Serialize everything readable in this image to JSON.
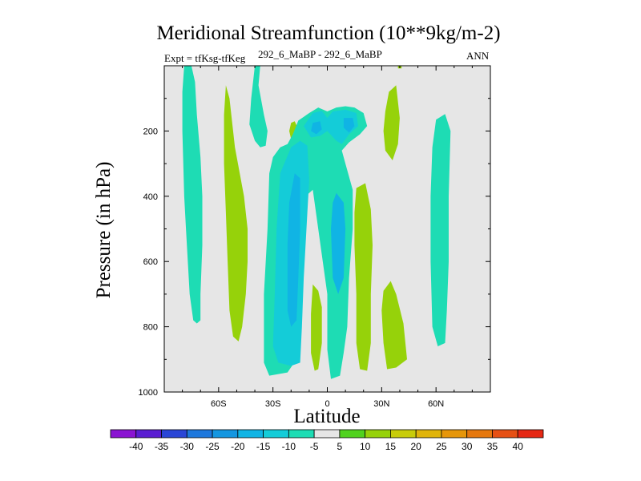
{
  "chart_data": {
    "type": "contour",
    "title": "Meridional Streamfunction (10**9kg/m-2)",
    "left_label": "Expt = tfKsg-tfKeg",
    "center_label": "292_6_MaBP - 292_6_MaBP",
    "right_label": "ANN",
    "xlabel": "Latitude",
    "ylabel": "Pressure (in hPa)",
    "xlim": [
      -90,
      90
    ],
    "ylim": [
      1000,
      0
    ],
    "y_reversed": true,
    "xticks": [
      {
        "value": -60,
        "label": "60S"
      },
      {
        "value": -30,
        "label": "30S"
      },
      {
        "value": 0,
        "label": "0"
      },
      {
        "value": 30,
        "label": "30N"
      },
      {
        "value": 60,
        "label": "60N"
      }
    ],
    "yticks": [
      {
        "value": 200,
        "label": "200"
      },
      {
        "value": 400,
        "label": "400"
      },
      {
        "value": 600,
        "label": "600"
      },
      {
        "value": 800,
        "label": "800"
      },
      {
        "value": 1000,
        "label": "1000"
      }
    ],
    "background_color": "#e6e6e6",
    "colorbar": {
      "levels": [
        "-40",
        "-35",
        "-30",
        "-25",
        "-20",
        "-15",
        "-10",
        "-5",
        "5",
        "10",
        "15",
        "20",
        "25",
        "30",
        "35",
        "40"
      ],
      "colors": [
        "#8a14d2",
        "#5a1ed2",
        "#2a46d6",
        "#1e78dc",
        "#1496e0",
        "#10b4e4",
        "#14ccd8",
        "#1edcb4",
        "#e6e6e6",
        "#50d21e",
        "#96d20a",
        "#c8cc0a",
        "#e0b40a",
        "#e6960a",
        "#e6780e",
        "#e65014",
        "#e62814"
      ]
    },
    "regions": [
      {
        "level": "-10",
        "points": [
          [
            -79,
            0
          ],
          [
            -75,
            0
          ],
          [
            -73,
            50
          ],
          [
            -72,
            150
          ],
          [
            -70,
            280
          ],
          [
            -69,
            400
          ],
          [
            -69,
            550
          ],
          [
            -70,
            700
          ],
          [
            -70,
            780
          ],
          [
            -72,
            790
          ],
          [
            -74,
            780
          ],
          [
            -76,
            700
          ],
          [
            -77,
            600
          ],
          [
            -78,
            500
          ],
          [
            -79,
            400
          ],
          [
            -80,
            200
          ],
          [
            -80,
            80
          ]
        ]
      },
      {
        "level": "10",
        "points": [
          [
            -56,
            60
          ],
          [
            -54,
            100
          ],
          [
            -51,
            250
          ],
          [
            -46,
            400
          ],
          [
            -44,
            500
          ],
          [
            -44,
            600
          ],
          [
            -45,
            700
          ],
          [
            -47,
            800
          ],
          [
            -49,
            845
          ],
          [
            -52,
            830
          ],
          [
            -54,
            750
          ],
          [
            -55,
            600
          ],
          [
            -56,
            450
          ],
          [
            -57,
            300
          ],
          [
            -57,
            150
          ]
        ]
      },
      {
        "level": "-10",
        "points": [
          [
            -40,
            0
          ],
          [
            -37,
            0
          ],
          [
            -38,
            60
          ],
          [
            -35,
            150
          ],
          [
            -33,
            200
          ],
          [
            -34,
            245
          ],
          [
            -37,
            250
          ],
          [
            -40,
            230
          ],
          [
            -43,
            180
          ],
          [
            -42,
            100
          ]
        ]
      },
      {
        "level": "10",
        "points": [
          [
            -20,
            175
          ],
          [
            -18,
            170
          ],
          [
            -16,
            195
          ],
          [
            -17,
            220
          ],
          [
            -20,
            225
          ],
          [
            -21,
            200
          ]
        ]
      },
      {
        "level": "-10",
        "points": [
          [
            -10,
            145
          ],
          [
            -5,
            128
          ],
          [
            0,
            140
          ],
          [
            5,
            128
          ],
          [
            10,
            124
          ],
          [
            15,
            128
          ],
          [
            20,
            145
          ],
          [
            22,
            185
          ],
          [
            18,
            210
          ],
          [
            12,
            235
          ],
          [
            8,
            260
          ],
          [
            10,
            300
          ],
          [
            14,
            380
          ],
          [
            14,
            500
          ],
          [
            12,
            650
          ],
          [
            11,
            800
          ],
          [
            9,
            880
          ],
          [
            7,
            950
          ],
          [
            2,
            960
          ],
          [
            0,
            870
          ],
          [
            0,
            700
          ],
          [
            -3,
            580
          ],
          [
            -8,
            380
          ],
          [
            -12,
            400
          ],
          [
            -14,
            600
          ],
          [
            -16,
            800
          ],
          [
            -17,
            900
          ],
          [
            -22,
            940
          ],
          [
            -32,
            950
          ],
          [
            -35,
            910
          ],
          [
            -35,
            700
          ],
          [
            -33,
            500
          ],
          [
            -32,
            330
          ],
          [
            -30,
            280
          ],
          [
            -26,
            250
          ],
          [
            -22,
            240
          ],
          [
            -19,
            210
          ],
          [
            -16,
            168
          ]
        ]
      },
      {
        "level": "-15",
        "points": [
          [
            -20,
            250
          ],
          [
            -15,
            230
          ],
          [
            -11,
            245
          ],
          [
            -10,
            350
          ],
          [
            -11,
            450
          ],
          [
            -13,
            650
          ],
          [
            -14,
            800
          ],
          [
            -15,
            910
          ],
          [
            -20,
            920
          ],
          [
            -27,
            910
          ],
          [
            -30,
            860
          ],
          [
            -29,
            700
          ],
          [
            -28,
            500
          ],
          [
            -26,
            330
          ]
        ]
      },
      {
        "level": "-20",
        "points": [
          [
            -18,
            330
          ],
          [
            -15,
            345
          ],
          [
            -15,
            500
          ],
          [
            -16,
            650
          ],
          [
            -17,
            780
          ],
          [
            -20,
            800
          ],
          [
            -22,
            750
          ],
          [
            -22,
            550
          ],
          [
            -21,
            420
          ]
        ]
      },
      {
        "level": "-20",
        "points": [
          [
            5,
            390
          ],
          [
            9,
            420
          ],
          [
            10,
            500
          ],
          [
            9,
            650
          ],
          [
            6,
            700
          ],
          [
            3,
            650
          ],
          [
            2,
            500
          ],
          [
            3,
            420
          ]
        ]
      },
      {
        "level": "-15",
        "points": [
          [
            -8,
            145
          ],
          [
            -3,
            138
          ],
          [
            0,
            160
          ],
          [
            3,
            140
          ],
          [
            10,
            135
          ],
          [
            16,
            145
          ],
          [
            17,
            185
          ],
          [
            12,
            210
          ],
          [
            8,
            240
          ],
          [
            5,
            230
          ],
          [
            0,
            200
          ],
          [
            -4,
            215
          ],
          [
            -9,
            220
          ],
          [
            -13,
            185
          ]
        ]
      },
      {
        "level": "-20",
        "points": [
          [
            -8,
            175
          ],
          [
            -4,
            170
          ],
          [
            -3,
            195
          ],
          [
            -6,
            210
          ],
          [
            -9,
            200
          ]
        ]
      },
      {
        "level": "-20",
        "points": [
          [
            9,
            160
          ],
          [
            14,
            160
          ],
          [
            15,
            185
          ],
          [
            12,
            205
          ],
          [
            9,
            190
          ]
        ]
      },
      {
        "level": "10",
        "points": [
          [
            -8,
            670
          ],
          [
            -5,
            690
          ],
          [
            -3,
            740
          ],
          [
            -3,
            850
          ],
          [
            -5,
            930
          ],
          [
            -7,
            935
          ],
          [
            -9,
            880
          ],
          [
            -9,
            760
          ]
        ]
      },
      {
        "level": "10",
        "points": [
          [
            16,
            375
          ],
          [
            21,
            360
          ],
          [
            24,
            440
          ],
          [
            25,
            550
          ],
          [
            24,
            700
          ],
          [
            24,
            850
          ],
          [
            22,
            935
          ],
          [
            18,
            930
          ],
          [
            16,
            850
          ],
          [
            16,
            700
          ],
          [
            15,
            550
          ],
          [
            15,
            450
          ]
        ]
      },
      {
        "level": "10",
        "points": [
          [
            34,
            80
          ],
          [
            38,
            60
          ],
          [
            40,
            160
          ],
          [
            39,
            240
          ],
          [
            36,
            290
          ],
          [
            32,
            260
          ],
          [
            31,
            200
          ],
          [
            32,
            140
          ]
        ]
      },
      {
        "level": "10",
        "points": [
          [
            39,
            0
          ],
          [
            41,
            0
          ],
          [
            41,
            8
          ],
          [
            39,
            8
          ]
        ]
      },
      {
        "level": "10",
        "points": [
          [
            31,
            690
          ],
          [
            35,
            660
          ],
          [
            38,
            700
          ],
          [
            42,
            790
          ],
          [
            44,
            900
          ],
          [
            38,
            925
          ],
          [
            33,
            930
          ],
          [
            31,
            850
          ],
          [
            30,
            750
          ]
        ]
      },
      {
        "level": "-10",
        "points": [
          [
            60,
            165
          ],
          [
            65,
            148
          ],
          [
            68,
            200
          ],
          [
            67,
            400
          ],
          [
            67,
            600
          ],
          [
            66,
            750
          ],
          [
            65,
            850
          ],
          [
            61,
            860
          ],
          [
            58,
            800
          ],
          [
            57,
            600
          ],
          [
            57,
            400
          ],
          [
            58,
            250
          ]
        ]
      }
    ]
  }
}
